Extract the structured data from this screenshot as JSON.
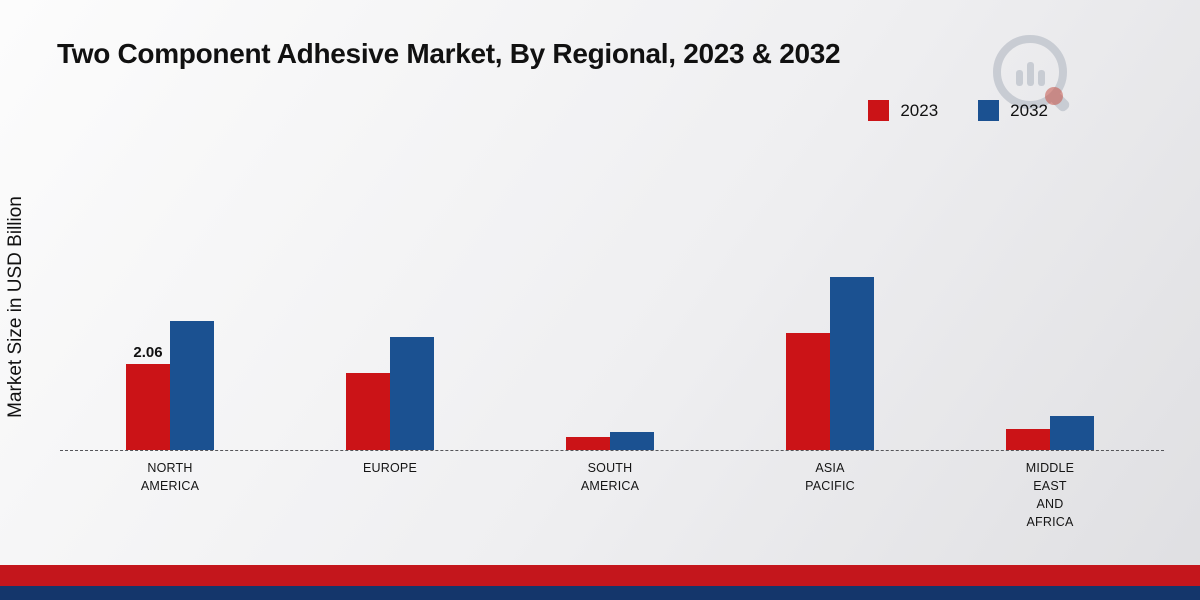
{
  "chart_data": {
    "type": "bar",
    "title": "Two Component Adhesive Market, By Regional, 2023 & 2032",
    "ylabel": "Market Size in USD Billion",
    "xlabel": "",
    "categories": [
      "NORTH\nAMERICA",
      "EUROPE",
      "SOUTH\nAMERICA",
      "ASIA\nPACIFIC",
      "MIDDLE\nEAST\nAND\nAFRICA"
    ],
    "series": [
      {
        "name": "2023",
        "color": "#cb1317",
        "values": [
          2.06,
          1.85,
          0.3,
          2.8,
          0.5
        ],
        "value_labels": [
          "2.06",
          null,
          null,
          null,
          null
        ]
      },
      {
        "name": "2032",
        "color": "#1b5191",
        "values": [
          3.1,
          2.7,
          0.42,
          4.15,
          0.82
        ],
        "value_labels": [
          null,
          null,
          null,
          null,
          null
        ]
      }
    ],
    "ylim": [
      0,
      4.8
    ],
    "grid": false,
    "baseline_style": "dashed",
    "legend_position": "top-right"
  },
  "footer": {
    "red_strip_color": "#c4161c",
    "blue_strip_color": "#14366b"
  },
  "logo": {
    "name": "market-research-logo",
    "ring_color": "#c3c7cf",
    "accent_color": "#c0392b"
  }
}
